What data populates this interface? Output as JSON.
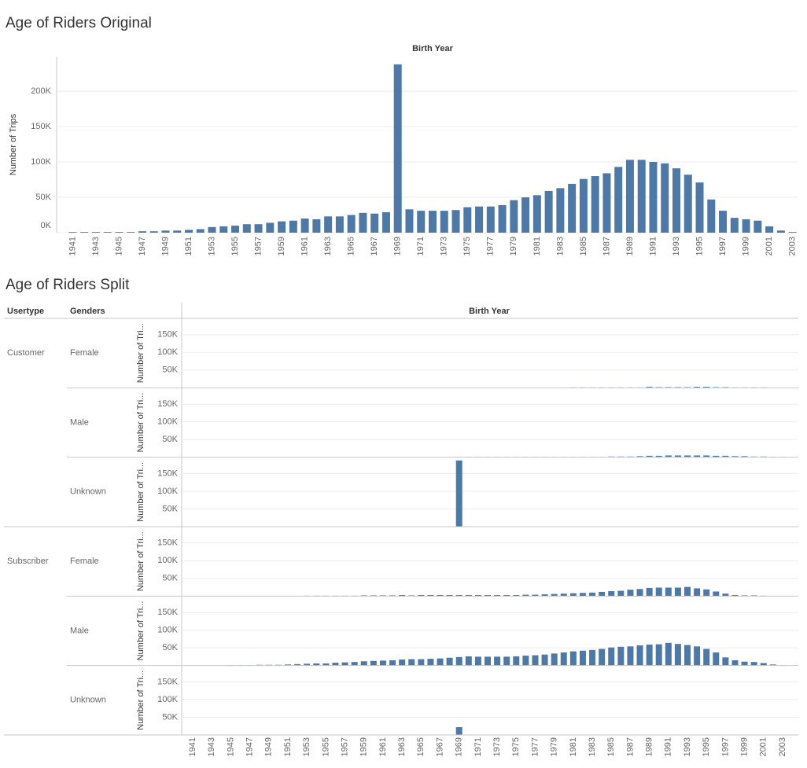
{
  "chart_data": [
    {
      "type": "bar",
      "title": "Age of Riders Original",
      "x_label": "Birth Year",
      "y_label": "Number of Trips",
      "color": "#4e79a7",
      "grid": true,
      "categories": [
        "1941",
        null,
        "1943",
        null,
        "1945",
        null,
        "1947",
        null,
        "1949",
        null,
        "1951",
        null,
        "1953",
        null,
        "1955",
        null,
        "1957",
        null,
        "1959",
        null,
        "1961",
        null,
        "1963",
        null,
        "1965",
        null,
        "1967",
        null,
        "1969",
        null,
        "1971",
        null,
        "1973",
        null,
        "1975",
        null,
        "1977",
        null,
        "1979",
        null,
        "1981",
        null,
        "1983",
        null,
        "1985",
        null,
        "1987",
        null,
        "1989",
        null,
        "1991",
        null,
        "1993",
        null,
        "1995",
        null,
        "1997",
        null,
        "1999",
        null,
        "2001",
        null,
        "2003"
      ],
      "values": [
        1000,
        1000,
        1000,
        1000,
        1000,
        1000,
        2000,
        2000,
        3000,
        3000,
        4000,
        5000,
        8000,
        9000,
        10000,
        12000,
        12000,
        14000,
        16000,
        17000,
        20000,
        19000,
        23000,
        23000,
        25000,
        28000,
        27000,
        29000,
        238000,
        33000,
        31000,
        31000,
        31000,
        32000,
        36000,
        37000,
        37000,
        39000,
        46000,
        50000,
        53000,
        59000,
        63000,
        69000,
        76000,
        80000,
        84000,
        93000,
        103000,
        103000,
        100000,
        98000,
        91000,
        82000,
        71000,
        47000,
        31000,
        21000,
        19000,
        17000,
        9000,
        3000,
        1000
      ],
      "ylim": [
        0,
        249000
      ],
      "yticks": [
        {
          "value": 0,
          "label": "0K"
        },
        {
          "value": 50000,
          "label": "50K"
        },
        {
          "value": 100000,
          "label": "100K"
        },
        {
          "value": 150000,
          "label": "150K"
        },
        {
          "value": 200000,
          "label": "200K"
        }
      ]
    },
    {
      "type": "bar",
      "title": "Age of Riders Split",
      "row_headers": [
        "Usertype",
        "Genders"
      ],
      "x_label": "Birth Year",
      "y_label": "Number of Tri...",
      "color": "#4e79a7",
      "grid": true,
      "categories": [
        "1941",
        null,
        "1943",
        null,
        "1945",
        null,
        "1947",
        null,
        "1949",
        null,
        "1951",
        null,
        "1953",
        null,
        "1955",
        null,
        "1957",
        null,
        "1959",
        null,
        "1961",
        null,
        "1963",
        null,
        "1965",
        null,
        "1967",
        null,
        "1969",
        null,
        "1971",
        null,
        "1973",
        null,
        "1975",
        null,
        "1977",
        null,
        "1979",
        null,
        "1981",
        null,
        "1983",
        null,
        "1985",
        null,
        "1987",
        null,
        "1989",
        null,
        "1991",
        null,
        "1993",
        null,
        "1995",
        null,
        "1997",
        null,
        "1999",
        null,
        "2001",
        null,
        "2003"
      ],
      "ylim": [
        0,
        196000
      ],
      "yticks": [
        {
          "value": 50000,
          "label": "50K"
        },
        {
          "value": 100000,
          "label": "100K"
        },
        {
          "value": 150000,
          "label": "150K"
        }
      ],
      "groups": [
        {
          "usertype": "Customer",
          "panels": [
            {
              "gender": "Female",
              "values": [
                null,
                null,
                null,
                null,
                null,
                null,
                null,
                null,
                null,
                null,
                null,
                null,
                null,
                null,
                null,
                null,
                null,
                null,
                null,
                null,
                null,
                null,
                null,
                null,
                null,
                null,
                null,
                null,
                null,
                null,
                null,
                null,
                null,
                null,
                null,
                null,
                null,
                null,
                null,
                null,
                1000,
                1000,
                1000,
                1000,
                1000,
                1000,
                1000,
                1000,
                3000,
                2000,
                2000,
                2000,
                2000,
                3000,
                3000,
                2000,
                2000,
                1000,
                1000,
                1000,
                1000,
                null,
                null
              ]
            },
            {
              "gender": "Male",
              "values": [
                null,
                null,
                null,
                null,
                null,
                null,
                null,
                null,
                null,
                null,
                null,
                null,
                null,
                null,
                null,
                null,
                null,
                null,
                null,
                null,
                null,
                null,
                null,
                null,
                null,
                null,
                null,
                null,
                1000,
                1000,
                1000,
                1000,
                1000,
                1000,
                1000,
                1000,
                1000,
                1000,
                1000,
                1000,
                1000,
                1000,
                1000,
                1000,
                2000,
                2000,
                2000,
                3000,
                4000,
                4000,
                5000,
                5000,
                5000,
                5000,
                5000,
                4000,
                4000,
                3000,
                3000,
                2000,
                2000,
                1000,
                1000
              ]
            },
            {
              "gender": "Unknown",
              "values": [
                null,
                null,
                null,
                null,
                null,
                null,
                null,
                null,
                null,
                null,
                null,
                null,
                null,
                null,
                null,
                null,
                null,
                null,
                null,
                null,
                null,
                null,
                null,
                null,
                null,
                null,
                null,
                null,
                187000,
                null,
                null,
                null,
                null,
                null,
                null,
                null,
                null,
                null,
                null,
                null,
                null,
                null,
                null,
                null,
                null,
                null,
                null,
                null,
                null,
                null,
                null,
                null,
                null,
                null,
                null,
                null,
                null,
                null,
                null,
                null,
                null,
                null,
                null
              ]
            }
          ]
        },
        {
          "usertype": "Subscriber",
          "panels": [
            {
              "gender": "Female",
              "values": [
                null,
                null,
                null,
                null,
                null,
                null,
                null,
                null,
                null,
                null,
                null,
                null,
                1000,
                1000,
                1000,
                1000,
                1000,
                1000,
                2000,
                2000,
                2000,
                2000,
                3000,
                2000,
                3000,
                3000,
                3000,
                3000,
                3000,
                3000,
                3000,
                3000,
                3000,
                3000,
                3000,
                4000,
                4000,
                5000,
                6000,
                7000,
                8000,
                9000,
                10000,
                12000,
                14000,
                15000,
                18000,
                20000,
                23000,
                24000,
                24000,
                24000,
                26000,
                22000,
                19000,
                13000,
                7000,
                3000,
                2000,
                2000,
                1000,
                null,
                null
              ]
            },
            {
              "gender": "Male",
              "values": [
                null,
                null,
                null,
                null,
                1000,
                1000,
                1000,
                2000,
                2000,
                2000,
                3000,
                4000,
                5000,
                6000,
                6000,
                8000,
                9000,
                10000,
                12000,
                13000,
                14000,
                15000,
                17000,
                18000,
                18000,
                19000,
                20000,
                22000,
                24000,
                26000,
                25000,
                25000,
                25000,
                25000,
                26000,
                28000,
                29000,
                31000,
                34000,
                37000,
                40000,
                42000,
                44000,
                47000,
                51000,
                53000,
                54000,
                57000,
                59000,
                60000,
                64000,
                61000,
                58000,
                54000,
                47000,
                37000,
                23000,
                15000,
                11000,
                10000,
                7000,
                3000,
                1000
              ]
            },
            {
              "gender": "Unknown",
              "values": [
                null,
                null,
                null,
                null,
                null,
                null,
                null,
                null,
                null,
                null,
                null,
                null,
                null,
                null,
                null,
                null,
                null,
                null,
                null,
                null,
                null,
                null,
                null,
                null,
                null,
                null,
                null,
                null,
                22000,
                null,
                null,
                null,
                null,
                null,
                null,
                null,
                null,
                null,
                null,
                null,
                null,
                null,
                null,
                null,
                null,
                null,
                null,
                null,
                null,
                null,
                null,
                null,
                null,
                null,
                null,
                null,
                null,
                null,
                null,
                null,
                null,
                null,
                null
              ]
            }
          ]
        }
      ]
    }
  ]
}
